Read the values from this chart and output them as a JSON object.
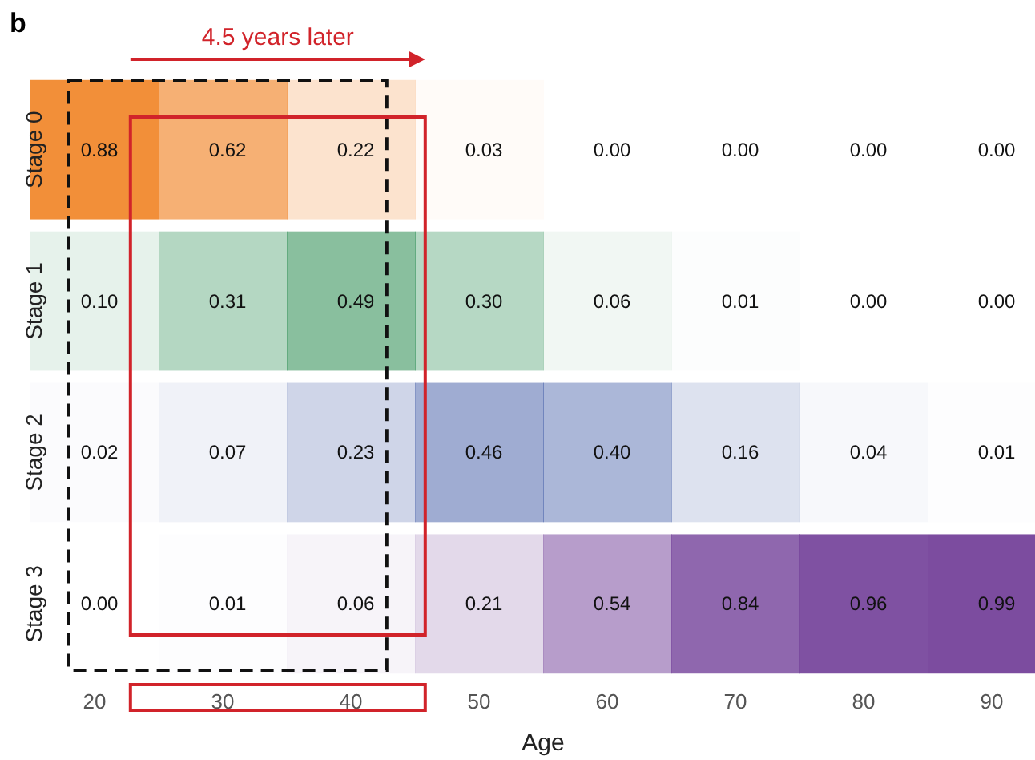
{
  "chart_data": {
    "type": "heatmap",
    "title": "b",
    "xlabel": "Age",
    "categories": [
      "20",
      "30",
      "40",
      "50",
      "60",
      "70",
      "80",
      "90"
    ],
    "y_categories": [
      "Stage 0",
      "Stage 1",
      "Stage 2",
      "Stage 3"
    ],
    "cells": [
      [
        0.88,
        0.62,
        0.22,
        0.03,
        0.0,
        0.0,
        0.0,
        0.0
      ],
      [
        0.1,
        0.31,
        0.49,
        0.3,
        0.06,
        0.01,
        0.0,
        0.0
      ],
      [
        0.02,
        0.07,
        0.23,
        0.46,
        0.4,
        0.16,
        0.04,
        0.01
      ],
      [
        0.0,
        0.01,
        0.06,
        0.21,
        0.54,
        0.84,
        0.96,
        0.99
      ]
    ],
    "cell_labels": [
      [
        "0.88",
        "0.62",
        "0.22",
        "0.03",
        "0.00",
        "0.00",
        "0.00",
        "0.00"
      ],
      [
        "0.10",
        "0.31",
        "0.49",
        "0.30",
        "0.06",
        "0.01",
        "0.00",
        "0.00"
      ],
      [
        "0.02",
        "0.07",
        "0.23",
        "0.46",
        "0.40",
        "0.16",
        "0.04",
        "0.01"
      ],
      [
        "0.00",
        "0.01",
        "0.06",
        "0.21",
        "0.54",
        "0.84",
        "0.96",
        "0.99"
      ]
    ],
    "colors": [
      "#f07f1e",
      "#0e7d3a",
      "#2e4a9d",
      "#7a4a9e"
    ],
    "annotations": [
      "4.5 years later"
    ]
  }
}
